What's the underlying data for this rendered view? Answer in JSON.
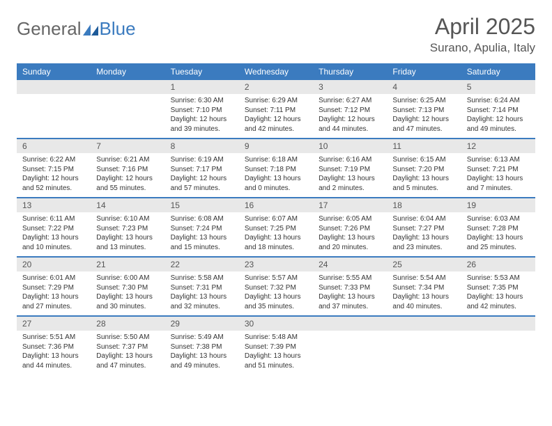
{
  "logo": {
    "general": "General",
    "blue": "Blue"
  },
  "title": "April 2025",
  "location": "Surano, Apulia, Italy",
  "colors": {
    "header_bg": "#3b7bbf",
    "header_text": "#ffffff",
    "daynum_bg": "#e8e8e8",
    "border": "#3b7bbf",
    "body_text": "#333333",
    "title_text": "#555555"
  },
  "day_headers": [
    "Sunday",
    "Monday",
    "Tuesday",
    "Wednesday",
    "Thursday",
    "Friday",
    "Saturday"
  ],
  "weeks": [
    [
      null,
      null,
      {
        "n": "1",
        "sr": "Sunrise: 6:30 AM",
        "ss": "Sunset: 7:10 PM",
        "dl": "Daylight: 12 hours and 39 minutes."
      },
      {
        "n": "2",
        "sr": "Sunrise: 6:29 AM",
        "ss": "Sunset: 7:11 PM",
        "dl": "Daylight: 12 hours and 42 minutes."
      },
      {
        "n": "3",
        "sr": "Sunrise: 6:27 AM",
        "ss": "Sunset: 7:12 PM",
        "dl": "Daylight: 12 hours and 44 minutes."
      },
      {
        "n": "4",
        "sr": "Sunrise: 6:25 AM",
        "ss": "Sunset: 7:13 PM",
        "dl": "Daylight: 12 hours and 47 minutes."
      },
      {
        "n": "5",
        "sr": "Sunrise: 6:24 AM",
        "ss": "Sunset: 7:14 PM",
        "dl": "Daylight: 12 hours and 49 minutes."
      }
    ],
    [
      {
        "n": "6",
        "sr": "Sunrise: 6:22 AM",
        "ss": "Sunset: 7:15 PM",
        "dl": "Daylight: 12 hours and 52 minutes."
      },
      {
        "n": "7",
        "sr": "Sunrise: 6:21 AM",
        "ss": "Sunset: 7:16 PM",
        "dl": "Daylight: 12 hours and 55 minutes."
      },
      {
        "n": "8",
        "sr": "Sunrise: 6:19 AM",
        "ss": "Sunset: 7:17 PM",
        "dl": "Daylight: 12 hours and 57 minutes."
      },
      {
        "n": "9",
        "sr": "Sunrise: 6:18 AM",
        "ss": "Sunset: 7:18 PM",
        "dl": "Daylight: 13 hours and 0 minutes."
      },
      {
        "n": "10",
        "sr": "Sunrise: 6:16 AM",
        "ss": "Sunset: 7:19 PM",
        "dl": "Daylight: 13 hours and 2 minutes."
      },
      {
        "n": "11",
        "sr": "Sunrise: 6:15 AM",
        "ss": "Sunset: 7:20 PM",
        "dl": "Daylight: 13 hours and 5 minutes."
      },
      {
        "n": "12",
        "sr": "Sunrise: 6:13 AM",
        "ss": "Sunset: 7:21 PM",
        "dl": "Daylight: 13 hours and 7 minutes."
      }
    ],
    [
      {
        "n": "13",
        "sr": "Sunrise: 6:11 AM",
        "ss": "Sunset: 7:22 PM",
        "dl": "Daylight: 13 hours and 10 minutes."
      },
      {
        "n": "14",
        "sr": "Sunrise: 6:10 AM",
        "ss": "Sunset: 7:23 PM",
        "dl": "Daylight: 13 hours and 13 minutes."
      },
      {
        "n": "15",
        "sr": "Sunrise: 6:08 AM",
        "ss": "Sunset: 7:24 PM",
        "dl": "Daylight: 13 hours and 15 minutes."
      },
      {
        "n": "16",
        "sr": "Sunrise: 6:07 AM",
        "ss": "Sunset: 7:25 PM",
        "dl": "Daylight: 13 hours and 18 minutes."
      },
      {
        "n": "17",
        "sr": "Sunrise: 6:05 AM",
        "ss": "Sunset: 7:26 PM",
        "dl": "Daylight: 13 hours and 20 minutes."
      },
      {
        "n": "18",
        "sr": "Sunrise: 6:04 AM",
        "ss": "Sunset: 7:27 PM",
        "dl": "Daylight: 13 hours and 23 minutes."
      },
      {
        "n": "19",
        "sr": "Sunrise: 6:03 AM",
        "ss": "Sunset: 7:28 PM",
        "dl": "Daylight: 13 hours and 25 minutes."
      }
    ],
    [
      {
        "n": "20",
        "sr": "Sunrise: 6:01 AM",
        "ss": "Sunset: 7:29 PM",
        "dl": "Daylight: 13 hours and 27 minutes."
      },
      {
        "n": "21",
        "sr": "Sunrise: 6:00 AM",
        "ss": "Sunset: 7:30 PM",
        "dl": "Daylight: 13 hours and 30 minutes."
      },
      {
        "n": "22",
        "sr": "Sunrise: 5:58 AM",
        "ss": "Sunset: 7:31 PM",
        "dl": "Daylight: 13 hours and 32 minutes."
      },
      {
        "n": "23",
        "sr": "Sunrise: 5:57 AM",
        "ss": "Sunset: 7:32 PM",
        "dl": "Daylight: 13 hours and 35 minutes."
      },
      {
        "n": "24",
        "sr": "Sunrise: 5:55 AM",
        "ss": "Sunset: 7:33 PM",
        "dl": "Daylight: 13 hours and 37 minutes."
      },
      {
        "n": "25",
        "sr": "Sunrise: 5:54 AM",
        "ss": "Sunset: 7:34 PM",
        "dl": "Daylight: 13 hours and 40 minutes."
      },
      {
        "n": "26",
        "sr": "Sunrise: 5:53 AM",
        "ss": "Sunset: 7:35 PM",
        "dl": "Daylight: 13 hours and 42 minutes."
      }
    ],
    [
      {
        "n": "27",
        "sr": "Sunrise: 5:51 AM",
        "ss": "Sunset: 7:36 PM",
        "dl": "Daylight: 13 hours and 44 minutes."
      },
      {
        "n": "28",
        "sr": "Sunrise: 5:50 AM",
        "ss": "Sunset: 7:37 PM",
        "dl": "Daylight: 13 hours and 47 minutes."
      },
      {
        "n": "29",
        "sr": "Sunrise: 5:49 AM",
        "ss": "Sunset: 7:38 PM",
        "dl": "Daylight: 13 hours and 49 minutes."
      },
      {
        "n": "30",
        "sr": "Sunrise: 5:48 AM",
        "ss": "Sunset: 7:39 PM",
        "dl": "Daylight: 13 hours and 51 minutes."
      },
      null,
      null,
      null
    ]
  ]
}
